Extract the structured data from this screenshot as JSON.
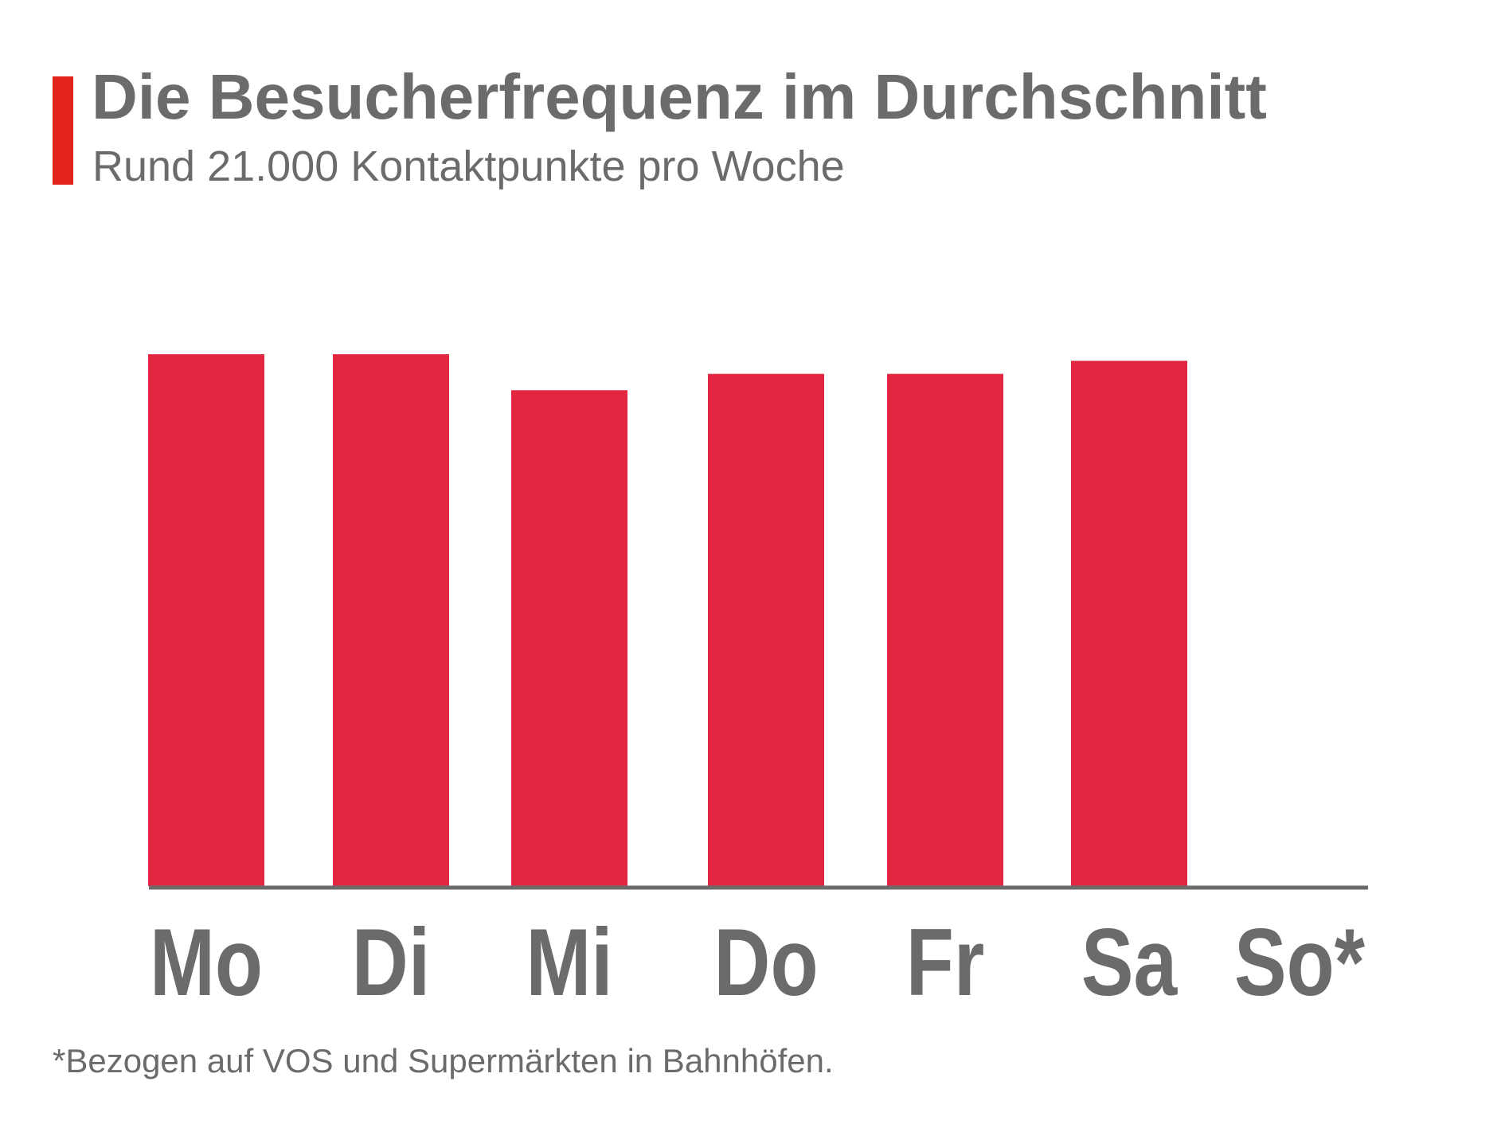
{
  "header": {
    "title": "Die Besucherfrequenz im Durchschnitt",
    "subtitle": "Rund 21.000 Kontaktpunkte pro Woche"
  },
  "footnote": "*Bezogen auf VOS und Supermärkten in Bahnhöfen.",
  "colors": {
    "bar": "#e32740",
    "accent": "#e2231a",
    "text": "#6b6b6b",
    "axis": "#6b6b6b"
  },
  "chart_data": {
    "type": "bar",
    "categories": [
      "Mo",
      "Di",
      "Mi",
      "Do",
      "Fr",
      "Sa",
      "So*"
    ],
    "values": [
      3250,
      3250,
      3030,
      3130,
      3130,
      3210,
      0
    ],
    "ylim": [
      0,
      3250
    ]
  }
}
